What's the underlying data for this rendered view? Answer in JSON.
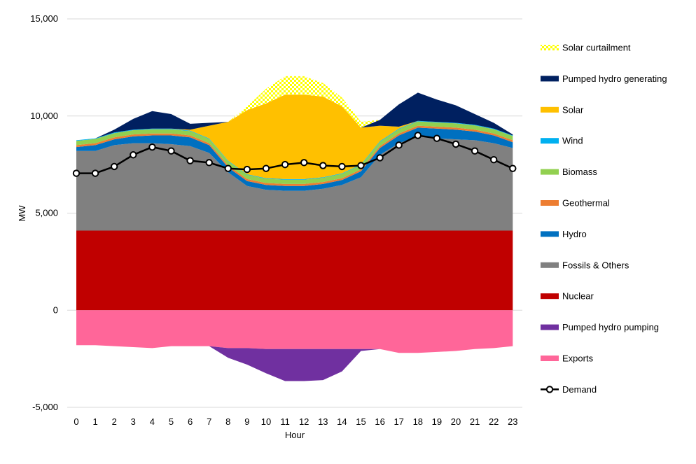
{
  "chart_data": {
    "type": "area",
    "title": "",
    "xlabel": "Hour",
    "ylabel": "MW",
    "x": [
      0,
      1,
      2,
      3,
      4,
      5,
      6,
      7,
      8,
      9,
      10,
      11,
      12,
      13,
      14,
      15,
      16,
      17,
      18,
      19,
      20,
      21,
      22,
      23
    ],
    "ylim": [
      -5000,
      15000
    ],
    "yticks": [
      -5000,
      0,
      5000,
      10000,
      15000
    ],
    "ytick_labels": [
      "-5,000",
      "0",
      "5,000",
      "10,000",
      "15,000"
    ],
    "grid": "horizontal",
    "legend_position": "right",
    "positive_stack_order": [
      "Nuclear",
      "Fossils & Others",
      "Hydro",
      "Geothermal",
      "Biomass",
      "Wind",
      "Solar",
      "Pumped hydro generating",
      "Solar curtailment"
    ],
    "negative_stack_order": [
      "Exports",
      "Pumped hydro pumping"
    ],
    "series": [
      {
        "name": "Solar curtailment",
        "color": "#FFFF00",
        "pattern": "checker",
        "values": [
          0,
          0,
          0,
          0,
          0,
          0,
          0,
          0,
          0,
          200,
          750,
          950,
          950,
          700,
          450,
          300,
          0,
          0,
          0,
          0,
          0,
          0,
          0,
          0
        ]
      },
      {
        "name": "Pumped hydro generating",
        "color": "#002060",
        "values": [
          0,
          0,
          150,
          550,
          900,
          750,
          300,
          150,
          0,
          0,
          0,
          0,
          0,
          0,
          0,
          0,
          300,
          1150,
          1450,
          1150,
          900,
          550,
          300,
          50
        ]
      },
      {
        "name": "Solar",
        "color": "#FFC000",
        "values": [
          0,
          0,
          0,
          0,
          0,
          0,
          50,
          650,
          2000,
          3300,
          3850,
          4350,
          4350,
          4150,
          3450,
          1900,
          800,
          100,
          0,
          0,
          0,
          0,
          0,
          0
        ]
      },
      {
        "name": "Wind",
        "color": "#00B0F0",
        "values": [
          30,
          30,
          30,
          30,
          30,
          30,
          30,
          30,
          30,
          30,
          30,
          30,
          30,
          30,
          30,
          30,
          30,
          30,
          30,
          30,
          30,
          30,
          30,
          30
        ]
      },
      {
        "name": "Biomass",
        "color": "#92D050",
        "values": [
          220,
          220,
          220,
          220,
          220,
          220,
          220,
          220,
          220,
          220,
          220,
          220,
          220,
          220,
          220,
          220,
          220,
          220,
          220,
          220,
          220,
          220,
          220,
          220
        ]
      },
      {
        "name": "Geothermal",
        "color": "#ED7D31",
        "values": [
          100,
          100,
          100,
          100,
          100,
          100,
          100,
          100,
          100,
          100,
          100,
          100,
          100,
          100,
          100,
          100,
          100,
          100,
          100,
          100,
          100,
          100,
          100,
          100
        ]
      },
      {
        "name": "Hydro",
        "color": "#0070C0",
        "values": [
          200,
          300,
          300,
          350,
          400,
          450,
          450,
          400,
          250,
          250,
          250,
          250,
          250,
          250,
          250,
          300,
          350,
          400,
          450,
          500,
          500,
          450,
          400,
          300
        ]
      },
      {
        "name": "Fossils & Others",
        "color": "#808080",
        "values": [
          4100,
          4100,
          4400,
          4500,
          4500,
          4450,
          4350,
          4000,
          3000,
          2300,
          2100,
          2050,
          2050,
          2150,
          2350,
          2750,
          3900,
          4500,
          4850,
          4750,
          4700,
          4650,
          4500,
          4250
        ]
      },
      {
        "name": "Nuclear",
        "color": "#C00000",
        "values": [
          4100,
          4100,
          4100,
          4100,
          4100,
          4100,
          4100,
          4100,
          4100,
          4100,
          4100,
          4100,
          4100,
          4100,
          4100,
          4100,
          4100,
          4100,
          4100,
          4100,
          4100,
          4100,
          4100,
          4100
        ]
      },
      {
        "name": "Pumped hydro pumping",
        "color": "#7030A0",
        "values": [
          0,
          0,
          0,
          0,
          0,
          0,
          0,
          0,
          -500,
          -850,
          -1250,
          -1650,
          -1650,
          -1600,
          -1150,
          -100,
          0,
          0,
          0,
          0,
          0,
          0,
          0,
          0
        ]
      },
      {
        "name": "Exports",
        "color": "#FF6699",
        "values": [
          -1800,
          -1800,
          -1850,
          -1900,
          -1950,
          -1850,
          -1850,
          -1850,
          -1950,
          -1950,
          -2000,
          -2000,
          -2000,
          -2000,
          -2000,
          -2000,
          -2000,
          -2200,
          -2200,
          -2150,
          -2100,
          -2000,
          -1950,
          -1850
        ]
      },
      {
        "name": "Demand",
        "color": "#000000",
        "kind": "line-marker",
        "values": [
          7050,
          7050,
          7400,
          8000,
          8400,
          8200,
          7700,
          7600,
          7300,
          7250,
          7300,
          7500,
          7600,
          7450,
          7400,
          7450,
          7850,
          8500,
          9000,
          8850,
          8550,
          8200,
          7750,
          7300
        ]
      }
    ]
  }
}
